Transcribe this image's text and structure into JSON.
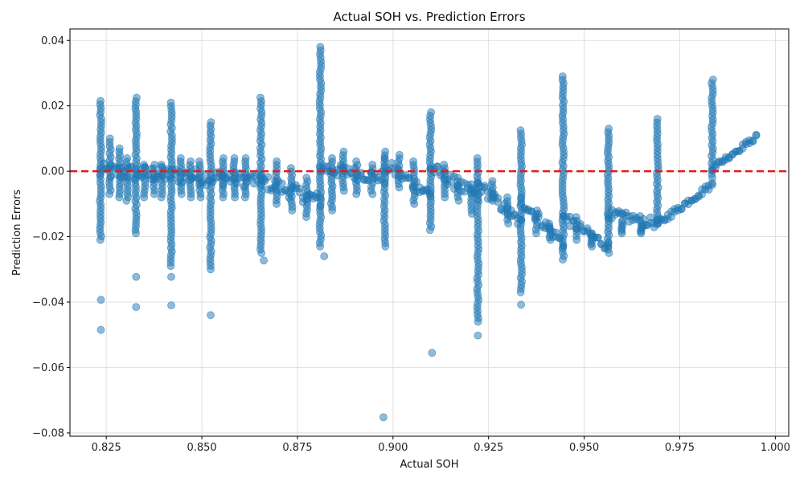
{
  "chart_data": {
    "type": "scatter",
    "title": "Actual SOH vs. Prediction Errors",
    "xlabel": "Actual SOH",
    "ylabel": "Prediction Errors",
    "xlim": [
      0.8155,
      1.0035
    ],
    "ylim": [
      -0.081,
      0.0435
    ],
    "x_ticks": [
      0.825,
      0.85,
      0.875,
      0.9,
      0.925,
      0.95,
      0.975,
      1.0
    ],
    "x_tick_labels": [
      "0.825",
      "0.850",
      "0.875",
      "0.900",
      "0.925",
      "0.950",
      "0.975",
      "1.000"
    ],
    "y_ticks": [
      -0.08,
      -0.06,
      -0.04,
      -0.02,
      0.0,
      0.02,
      0.04
    ],
    "y_tick_labels": [
      "−0.08",
      "−0.06",
      "−0.04",
      "−0.02",
      "0.00",
      "0.02",
      "0.04"
    ],
    "grid": true,
    "point_color": "#1f77b4",
    "reference_line": {
      "y": 0.0,
      "color": "#e31a1c",
      "style": "dashed"
    },
    "clusters": [
      {
        "x": 0.8235,
        "ymin": -0.021,
        "ymax": 0.0215
      },
      {
        "x": 0.826,
        "ymin": -0.007,
        "ymax": 0.01
      },
      {
        "x": 0.8285,
        "ymin": -0.008,
        "ymax": 0.007
      },
      {
        "x": 0.8305,
        "ymin": -0.009,
        "ymax": 0.004
      },
      {
        "x": 0.8328,
        "ymin": -0.019,
        "ymax": 0.0225
      },
      {
        "x": 0.835,
        "ymin": -0.008,
        "ymax": 0.002
      },
      {
        "x": 0.8375,
        "ymin": -0.007,
        "ymax": 0.002
      },
      {
        "x": 0.8395,
        "ymin": -0.008,
        "ymax": 0.002
      },
      {
        "x": 0.842,
        "ymin": -0.029,
        "ymax": 0.021
      },
      {
        "x": 0.8445,
        "ymin": -0.007,
        "ymax": 0.004
      },
      {
        "x": 0.847,
        "ymin": -0.008,
        "ymax": 0.003
      },
      {
        "x": 0.8495,
        "ymin": -0.008,
        "ymax": 0.003
      },
      {
        "x": 0.8523,
        "ymin": -0.03,
        "ymax": 0.015
      },
      {
        "x": 0.8555,
        "ymin": -0.008,
        "ymax": 0.004
      },
      {
        "x": 0.8585,
        "ymin": -0.008,
        "ymax": 0.004
      },
      {
        "x": 0.8615,
        "ymin": -0.008,
        "ymax": 0.004
      },
      {
        "x": 0.8655,
        "ymin": -0.025,
        "ymax": 0.0225
      },
      {
        "x": 0.8695,
        "ymin": -0.01,
        "ymax": 0.003
      },
      {
        "x": 0.8735,
        "ymin": -0.012,
        "ymax": 0.001
      },
      {
        "x": 0.8775,
        "ymin": -0.014,
        "ymax": -0.002
      },
      {
        "x": 0.881,
        "ymin": -0.023,
        "ymax": 0.038
      },
      {
        "x": 0.884,
        "ymin": -0.012,
        "ymax": 0.004
      },
      {
        "x": 0.887,
        "ymin": -0.006,
        "ymax": 0.006
      },
      {
        "x": 0.8905,
        "ymin": -0.007,
        "ymax": 0.003
      },
      {
        "x": 0.8945,
        "ymin": -0.007,
        "ymax": 0.002
      },
      {
        "x": 0.8978,
        "ymin": -0.023,
        "ymax": 0.006
      },
      {
        "x": 0.9015,
        "ymin": -0.005,
        "ymax": 0.005
      },
      {
        "x": 0.9055,
        "ymin": -0.01,
        "ymax": 0.003
      },
      {
        "x": 0.9098,
        "ymin": -0.018,
        "ymax": 0.018
      },
      {
        "x": 0.9135,
        "ymin": -0.008,
        "ymax": 0.002
      },
      {
        "x": 0.917,
        "ymin": -0.009,
        "ymax": -0.002
      },
      {
        "x": 0.9205,
        "ymin": -0.013,
        "ymax": -0.004
      },
      {
        "x": 0.9222,
        "ymin": -0.046,
        "ymax": 0.004
      },
      {
        "x": 0.926,
        "ymin": -0.009,
        "ymax": -0.003
      },
      {
        "x": 0.93,
        "ymin": -0.016,
        "ymax": -0.008
      },
      {
        "x": 0.9335,
        "ymin": -0.037,
        "ymax": 0.0125
      },
      {
        "x": 0.9375,
        "ymin": -0.019,
        "ymax": -0.012
      },
      {
        "x": 0.941,
        "ymin": -0.021,
        "ymax": -0.016
      },
      {
        "x": 0.9445,
        "ymin": -0.027,
        "ymax": 0.029
      },
      {
        "x": 0.948,
        "ymin": -0.021,
        "ymax": -0.014
      },
      {
        "x": 0.952,
        "ymin": -0.023,
        "ymax": -0.019
      },
      {
        "x": 0.9563,
        "ymin": -0.025,
        "ymax": 0.013
      },
      {
        "x": 0.96,
        "ymin": -0.019,
        "ymax": -0.015
      },
      {
        "x": 0.965,
        "ymin": -0.019,
        "ymax": -0.016
      },
      {
        "x": 0.9692,
        "ymin": -0.016,
        "ymax": 0.016
      },
      {
        "x": 0.9835,
        "ymin": -0.002,
        "ymax": 0.028
      }
    ],
    "bands": [
      {
        "x0": 0.8235,
        "x1": 0.8555,
        "y0": 0.0,
        "y1": -0.002,
        "spread": 0.005
      },
      {
        "x0": 0.8555,
        "x1": 0.8655,
        "y0": -0.002,
        "y1": -0.003,
        "spread": 0.0045
      },
      {
        "x0": 0.8655,
        "x1": 0.881,
        "y0": -0.003,
        "y1": -0.009,
        "spread": 0.0045
      },
      {
        "x0": 0.881,
        "x1": 0.8978,
        "y0": 0.001,
        "y1": -0.002,
        "spread": 0.004
      },
      {
        "x0": 0.8978,
        "x1": 0.9098,
        "y0": 0.002,
        "y1": -0.007,
        "spread": 0.004
      },
      {
        "x0": 0.9098,
        "x1": 0.9222,
        "y0": 0.001,
        "y1": -0.008,
        "spread": 0.004
      },
      {
        "x0": 0.9222,
        "x1": 0.9335,
        "y0": -0.004,
        "y1": -0.016,
        "spread": 0.0035
      },
      {
        "x0": 0.9335,
        "x1": 0.9445,
        "y0": -0.009,
        "y1": -0.022,
        "spread": 0.0035
      },
      {
        "x0": 0.9445,
        "x1": 0.9563,
        "y0": -0.014,
        "y1": -0.023,
        "spread": 0.003
      },
      {
        "x0": 0.9563,
        "x1": 0.9692,
        "y0": -0.013,
        "y1": -0.016,
        "spread": 0.003
      },
      {
        "x0": 0.9692,
        "x1": 0.9835,
        "y0": -0.016,
        "y1": -0.004,
        "spread": 0.002
      },
      {
        "x0": 0.9835,
        "x1": 0.995,
        "y0": 0.001,
        "y1": 0.0105,
        "spread": 0.0015
      }
    ],
    "outliers": [
      {
        "x": 0.8236,
        "y": -0.0393
      },
      {
        "x": 0.8236,
        "y": -0.0485
      },
      {
        "x": 0.8328,
        "y": -0.0323
      },
      {
        "x": 0.8328,
        "y": -0.0415
      },
      {
        "x": 0.842,
        "y": -0.0323
      },
      {
        "x": 0.842,
        "y": -0.041
      },
      {
        "x": 0.8523,
        "y": -0.044
      },
      {
        "x": 0.8662,
        "y": -0.0273
      },
      {
        "x": 0.882,
        "y": -0.026
      },
      {
        "x": 0.8975,
        "y": -0.0752
      },
      {
        "x": 0.9102,
        "y": -0.0555
      },
      {
        "x": 0.9222,
        "y": -0.0502
      },
      {
        "x": 0.9335,
        "y": -0.0408
      }
    ]
  }
}
